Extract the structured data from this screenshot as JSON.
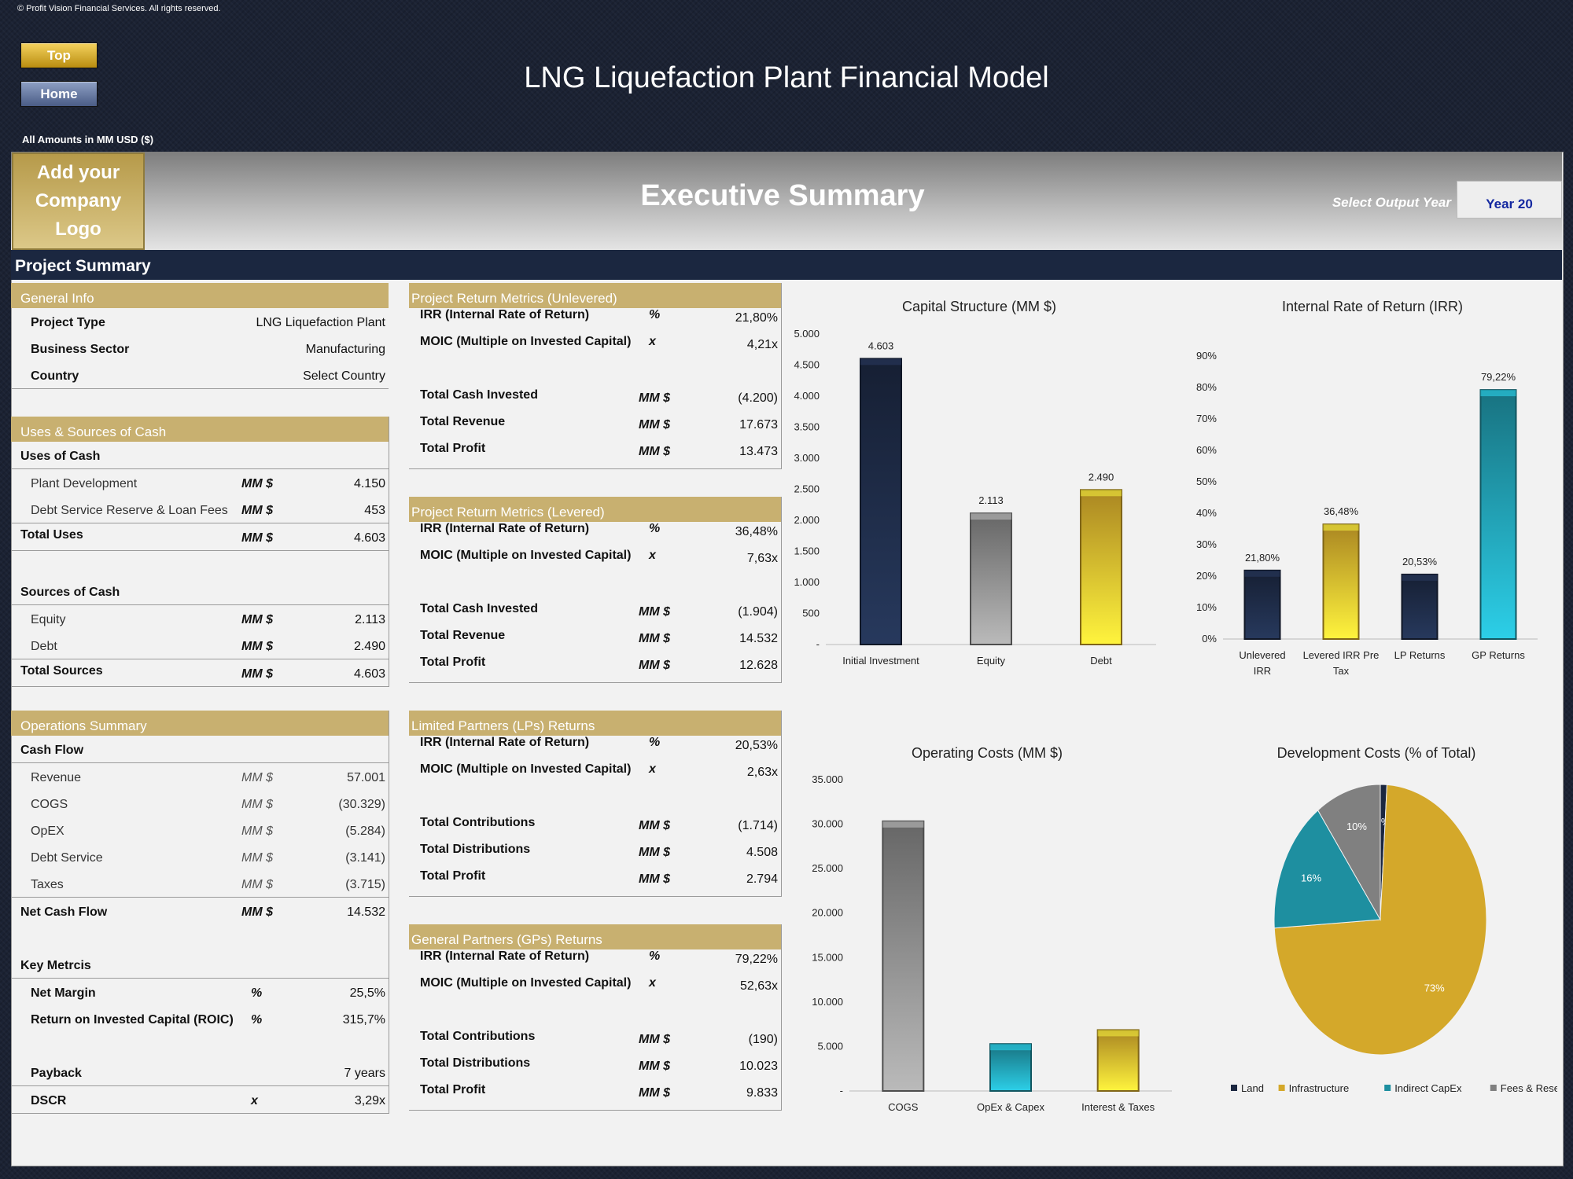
{
  "copyright": "© Profit Vision Financial Services. All rights reserved.",
  "nav": {
    "top": "Top",
    "home": "Home"
  },
  "title": "LNG Liquefaction Plant Financial Model",
  "amounts_note": "All Amounts in MM  USD ($)",
  "banner": {
    "logo_line1": "Add your",
    "logo_line2": "Company Logo",
    "heading": "Executive Summary",
    "select_label": "Select Output Year",
    "year": "Year 20"
  },
  "project_summary": "Project Summary",
  "general_info": {
    "title": "General Info",
    "rows": [
      {
        "label": "Project Type",
        "value": "LNG Liquefaction Plant"
      },
      {
        "label": "Business Sector",
        "value": "Manufacturing"
      },
      {
        "label": "Country",
        "value": "Select Country"
      }
    ]
  },
  "uses_sources": {
    "title": "Uses & Sources of Cash",
    "uses_label": "Uses of Cash",
    "uses": [
      {
        "label": "Plant Development",
        "unit": "MM $",
        "value": "4.150"
      },
      {
        "label": "Debt Service Reserve & Loan Fees",
        "unit": "MM $",
        "value": "453"
      }
    ],
    "total_uses": {
      "label": "Total Uses",
      "unit": "MM $",
      "value": "4.603"
    },
    "sources_label": "Sources of Cash",
    "sources": [
      {
        "label": "Equity",
        "unit": "MM $",
        "value": "2.113"
      },
      {
        "label": "Debt",
        "unit": "MM $",
        "value": "2.490"
      }
    ],
    "total_sources": {
      "label": "Total Sources",
      "unit": "MM $",
      "value": "4.603"
    }
  },
  "operations": {
    "title": "Operations Summary",
    "cash_flow_label": "Cash Flow",
    "rows": [
      {
        "label": "Revenue",
        "unit": "MM $",
        "value": "57.001"
      },
      {
        "label": "COGS",
        "unit": "MM $",
        "value": "(30.329)"
      },
      {
        "label": "OpEX",
        "unit": "MM $",
        "value": "(5.284)"
      },
      {
        "label": "Debt Service",
        "unit": "MM $",
        "value": "(3.141)"
      },
      {
        "label": "Taxes",
        "unit": "MM $",
        "value": "(3.715)"
      }
    ],
    "net": {
      "label": "Net Cash Flow",
      "unit": "MM $",
      "value": "14.532"
    },
    "key_label": "Key Metrcis",
    "key": [
      {
        "label": "Net Margin",
        "unit": "%",
        "value": "25,5%"
      },
      {
        "label": "Return on Invested Capital (ROIC)",
        "unit": "%",
        "value": "315,7%"
      }
    ],
    "payback": {
      "label": "Payback",
      "unit": "",
      "value": "7 years"
    },
    "dscr": {
      "label": "DSCR",
      "unit": "x",
      "value": "3,29x"
    }
  },
  "unlevered": {
    "title": "Project Return Metrics (Unlevered)",
    "rows": [
      {
        "label": "IRR (Internal Rate of Return)",
        "unit": "%",
        "value": "21,80%"
      },
      {
        "label": "MOIC (Multiple on Invested Capital)",
        "unit": "x",
        "value": "4,21x"
      },
      {
        "label": "Total Cash Invested",
        "unit": "MM $",
        "value": "(4.200)"
      },
      {
        "label": "Total Revenue",
        "unit": "MM $",
        "value": "17.673"
      },
      {
        "label": "Total Profit",
        "unit": "MM $",
        "value": "13.473"
      }
    ]
  },
  "levered": {
    "title": "Project Return Metrics (Levered)",
    "rows": [
      {
        "label": "IRR (Internal Rate of Return)",
        "unit": "%",
        "value": "36,48%"
      },
      {
        "label": "MOIC (Multiple on Invested Capital)",
        "unit": "x",
        "value": "7,63x"
      },
      {
        "label": "Total Cash Invested",
        "unit": "MM $",
        "value": "(1.904)"
      },
      {
        "label": "Total Revenue",
        "unit": "MM $",
        "value": "14.532"
      },
      {
        "label": "Total Profit",
        "unit": "MM $",
        "value": "12.628"
      }
    ]
  },
  "lp": {
    "title": "Limited Partners (LPs) Returns",
    "rows": [
      {
        "label": "IRR (Internal Rate of Return)",
        "unit": "%",
        "value": "20,53%"
      },
      {
        "label": "MOIC (Multiple on Invested Capital)",
        "unit": "x",
        "value": "2,63x"
      },
      {
        "label": "Total Contributions",
        "unit": "MM $",
        "value": "(1.714)"
      },
      {
        "label": "Total Distributions",
        "unit": "MM $",
        "value": "4.508"
      },
      {
        "label": "Total Profit",
        "unit": "MM $",
        "value": "2.794"
      }
    ]
  },
  "gp": {
    "title": "General Partners (GPs) Returns",
    "rows": [
      {
        "label": "IRR (Internal Rate of Return)",
        "unit": "%",
        "value": "79,22%"
      },
      {
        "label": "MOIC (Multiple on Invested Capital)",
        "unit": "x",
        "value": "52,63x"
      },
      {
        "label": "Total Contributions",
        "unit": "MM $",
        "value": "(190)"
      },
      {
        "label": "Total Distributions",
        "unit": "MM $",
        "value": "10.023"
      },
      {
        "label": "Total Profit",
        "unit": "MM $",
        "value": "9.833"
      }
    ]
  },
  "chart_data": [
    {
      "type": "bar",
      "title": "Capital Structure (MM $)",
      "categories": [
        "Initial Investment",
        "Equity",
        "Debt"
      ],
      "values": [
        4603,
        2113,
        2490
      ],
      "data_labels": [
        "4.603",
        "2.113",
        "2.490"
      ],
      "ylim": [
        0,
        5000
      ],
      "yticks": [
        "-",
        "500",
        "1.000",
        "1.500",
        "2.000",
        "2.500",
        "3.000",
        "3.500",
        "4.000",
        "4.500",
        "5.000"
      ],
      "colors": [
        "#1b2740",
        "#808080",
        "#d4a82a"
      ],
      "grid": false,
      "legend": "none"
    },
    {
      "type": "bar",
      "title": "Internal Rate of Return (IRR)",
      "categories": [
        "Unlevered IRR",
        "Levered IRR Pre Tax",
        "LP Returns",
        "GP Returns"
      ],
      "values": [
        21.8,
        36.48,
        20.53,
        79.22
      ],
      "data_labels": [
        "21,80%",
        "36,48%",
        "20,53%",
        "79,22%"
      ],
      "ylim": [
        0,
        90
      ],
      "yticks": [
        "0%",
        "10%",
        "20%",
        "30%",
        "40%",
        "50%",
        "60%",
        "70%",
        "80%",
        "90%"
      ],
      "colors": [
        "#1b2740",
        "#d4a82a",
        "#1b2740",
        "#1e8fa0"
      ],
      "grid": false,
      "legend": "none"
    },
    {
      "type": "bar",
      "title": "Operating Costs (MM $)",
      "categories": [
        "COGS",
        "OpEx & Capex",
        "Interest & Taxes"
      ],
      "values": [
        30329,
        5284,
        6856
      ],
      "ylim": [
        0,
        35000
      ],
      "yticks": [
        "-",
        "5.000",
        "10.000",
        "15.000",
        "20.000",
        "25.000",
        "30.000",
        "35.000"
      ],
      "colors": [
        "#808080",
        "#1e8fa0",
        "#d4a82a"
      ],
      "grid": false,
      "legend": "none"
    },
    {
      "type": "pie",
      "title": "Development Costs (% of Total)",
      "labels": [
        "Land",
        "Infrastructure",
        "Indirect CapEx",
        "Fees & Reserves"
      ],
      "values": [
        1,
        73,
        16,
        10
      ],
      "data_labels": [
        "1%",
        "73%",
        "16%",
        "10%"
      ],
      "colors": [
        "#1b2740",
        "#d4a82a",
        "#1e8fa0",
        "#808080"
      ],
      "legend": "bottom"
    }
  ]
}
